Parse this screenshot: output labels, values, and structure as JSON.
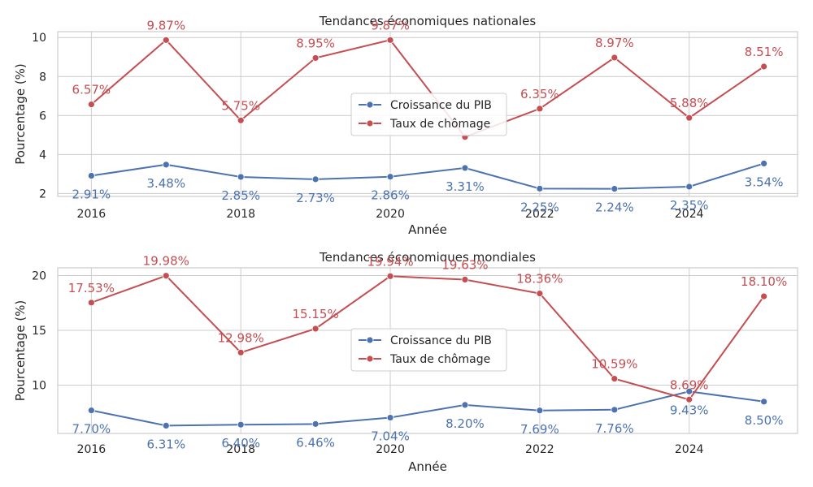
{
  "chart_data": [
    {
      "type": "line",
      "title": "Tendances économiques nationales",
      "xlabel": "Année",
      "ylabel": "Pourcentage (%)",
      "x": [
        2016,
        2017,
        2018,
        2019,
        2020,
        2021,
        2022,
        2023,
        2024,
        2025
      ],
      "xticks": [
        2016,
        2018,
        2020,
        2022,
        2024
      ],
      "yticks": [
        2,
        4,
        6,
        8,
        10
      ],
      "ylim": [
        1.85,
        10.3
      ],
      "xlim": [
        2015.55,
        2025.45
      ],
      "grid": true,
      "legend_position": "center",
      "series": [
        {
          "name": "Croissance du PIB",
          "color": "#4c72b0",
          "values": [
            2.91,
            3.48,
            2.85,
            2.73,
            2.86,
            3.31,
            2.25,
            2.24,
            2.35,
            3.54
          ],
          "labels": [
            "2.91%",
            "3.48%",
            "2.85%",
            "2.73%",
            "2.86%",
            "3.31%",
            "2.25%",
            "2.24%",
            "2.35%",
            "3.54%"
          ],
          "label_side": "below"
        },
        {
          "name": "Taux de chômage",
          "color": "#c44e52",
          "values": [
            6.57,
            9.87,
            5.75,
            8.95,
            9.87,
            4.9,
            6.35,
            8.97,
            5.88,
            8.51
          ],
          "labels": [
            "6.57%",
            "9.87%",
            "5.75%",
            "8.95%",
            "9.87%",
            "",
            "6.35%",
            "8.97%",
            "5.88%",
            "8.51%"
          ],
          "label_side": "above"
        }
      ]
    },
    {
      "type": "line",
      "title": "Tendances économiques mondiales",
      "xlabel": "Année",
      "ylabel": "Pourcentage (%)",
      "x": [
        2016,
        2017,
        2018,
        2019,
        2020,
        2021,
        2022,
        2023,
        2024,
        2025
      ],
      "xticks": [
        2016,
        2018,
        2020,
        2022,
        2024
      ],
      "yticks": [
        10,
        15,
        20
      ],
      "ylim": [
        5.6,
        20.7
      ],
      "xlim": [
        2015.55,
        2025.45
      ],
      "grid": true,
      "legend_position": "center",
      "series": [
        {
          "name": "Croissance du PIB",
          "color": "#4c72b0",
          "values": [
            7.7,
            6.31,
            6.4,
            6.46,
            7.04,
            8.2,
            7.69,
            7.76,
            9.43,
            8.5
          ],
          "labels": [
            "7.70%",
            "6.31%",
            "6.40%",
            "6.46%",
            "7.04%",
            "8.20%",
            "7.69%",
            "7.76%",
            "9.43%",
            "8.50%"
          ],
          "label_side": "below"
        },
        {
          "name": "Taux de chômage",
          "color": "#c44e52",
          "values": [
            17.53,
            19.98,
            12.98,
            15.15,
            19.94,
            19.63,
            18.36,
            10.59,
            8.69,
            18.1
          ],
          "labels": [
            "17.53%",
            "19.98%",
            "12.98%",
            "15.15%",
            "19.94%",
            "19.63%",
            "18.36%",
            "10.59%",
            "8.69%",
            "18.10%"
          ],
          "label_side": "above"
        }
      ]
    }
  ]
}
